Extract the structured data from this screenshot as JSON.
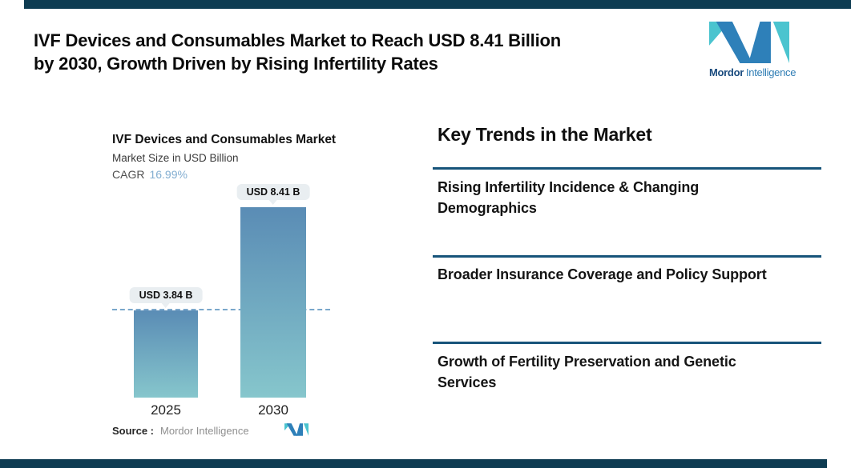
{
  "page": {
    "background": "#FFFFFF",
    "accent_color": "#0E3C52"
  },
  "header": {
    "title_lines": [
      "IVF Devices and Consumables Market to Reach USD 8.41 Billion",
      "by 2030, Growth Driven by Rising Infertility Rates"
    ]
  },
  "brand": {
    "name_bold": "Mordor",
    "name_light": "Intelligence",
    "colors": {
      "teal": "#4BC4CF",
      "blue": "#2E80B9",
      "text_dark": "#1A4B7E",
      "text_light": "#2F7DB4"
    }
  },
  "chart": {
    "title": "IVF Devices and Consumables Market",
    "subtitle": "Market Size in USD Billion",
    "cagr_label": "CAGR",
    "cagr_value": "16.99%",
    "cagr_value_color": "#83AED1",
    "source_label": "Source :",
    "source_value": "Mordor Intelligence"
  },
  "chart_data": {
    "type": "bar",
    "title": "IVF Devices and Consumables Market",
    "ylabel": "Market Size in USD Billion",
    "categories": [
      "2025",
      "2030"
    ],
    "values": [
      3.84,
      8.41
    ],
    "value_labels": [
      "USD 3.84 B",
      "USD 8.41 B"
    ],
    "cagr_percent": 16.99,
    "ylim": [
      0,
      8.41
    ],
    "grid": false,
    "legend": false,
    "baseline": {
      "at_value": 3.84,
      "style": "dashed"
    },
    "bar_gradient_top": "#5A8CB5",
    "bar_gradient_bottom": "#86C6CC",
    "dashed_line_color": "#7AA7CB",
    "label_pill_bg": "#E9EEF1"
  },
  "trends": {
    "heading": "Key Trends in the Market",
    "rule_color": "#17547A",
    "items": [
      {
        "lines": [
          "Rising Infertility Incidence & Changing",
          "Demographics"
        ]
      },
      {
        "lines": [
          "Broader Insurance Coverage and Policy Support",
          ""
        ]
      },
      {
        "lines": [
          "Growth of Fertility Preservation and Genetic",
          "Services"
        ]
      }
    ]
  }
}
